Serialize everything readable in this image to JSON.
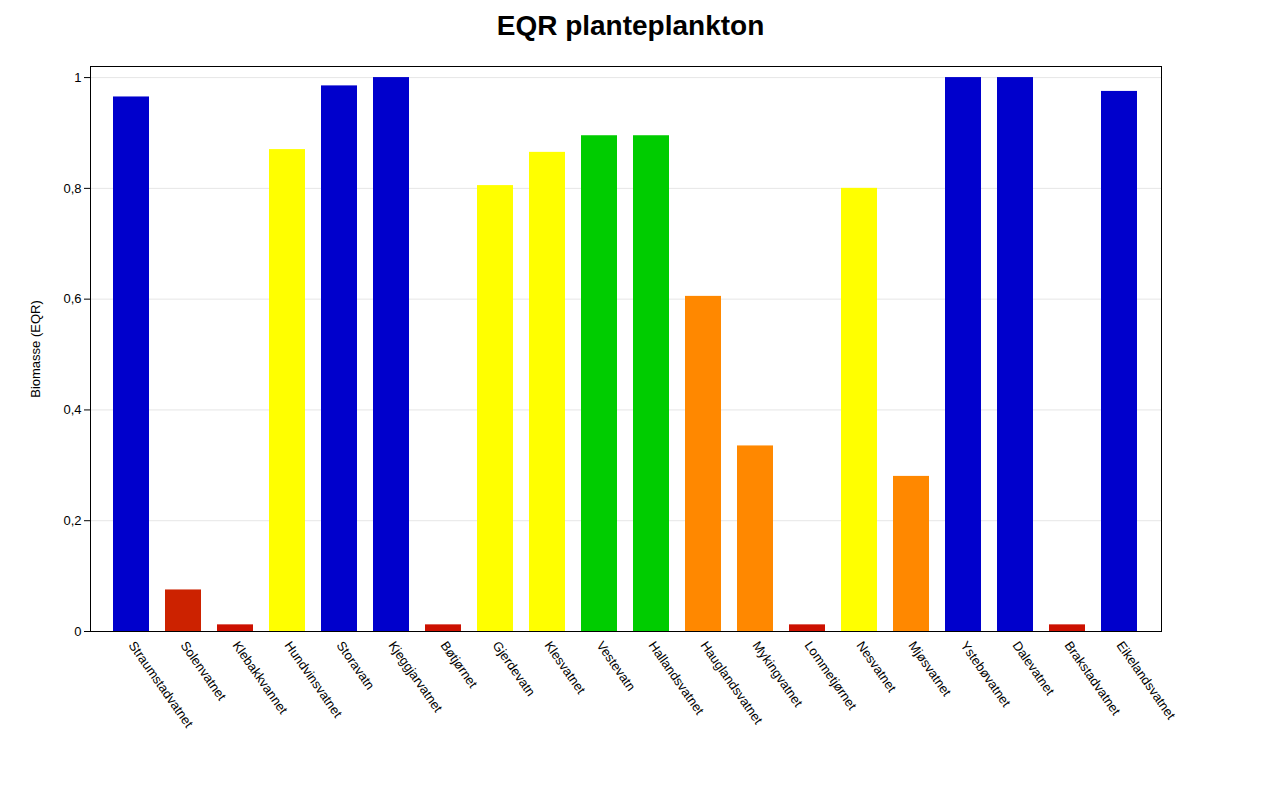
{
  "chart_data": {
    "type": "bar",
    "title": "EQR planteplankton",
    "ylabel": "Biomasse (EQR)",
    "categories": [
      "Straumstadvatnet",
      "Solenvatnet",
      "Klebakkvannet",
      "Hundvinsvatnet",
      "Storavatn",
      "Kjeggjarvatnet",
      "Bøtjørnet",
      "Gjerdevatn",
      "Klesvatnet",
      "Vestevatn",
      "Hallandsvatnet",
      "Hauglandsvatnet",
      "Mykingvatnet",
      "Lommetjørnet",
      "Nesvatnet",
      "Mjøsvatnet",
      "Ystebøvatnet",
      "Dalevatnet",
      "Brakstadvatnet",
      "Eikelandsvatnet"
    ],
    "values": [
      0.965,
      0.075,
      0.012,
      0.87,
      0.985,
      1.0,
      0.012,
      0.805,
      0.865,
      0.895,
      0.895,
      0.605,
      0.335,
      0.012,
      0.8,
      0.28,
      1.0,
      1.0,
      0.012,
      0.975
    ],
    "colors": [
      "#0000cc",
      "#cc2200",
      "#cc1100",
      "#ffff00",
      "#0000cc",
      "#0000cc",
      "#cc1100",
      "#ffff00",
      "#ffff00",
      "#00cc00",
      "#00cc00",
      "#ff8800",
      "#ff8800",
      "#cc1100",
      "#ffff00",
      "#ff8800",
      "#0000cc",
      "#0000cc",
      "#cc1100",
      "#0000cc"
    ],
    "ylim": [
      0,
      1.02
    ],
    "yticks": [
      0,
      {
        "value": 0.2,
        "label": "0,2"
      },
      {
        "value": 0.4,
        "label": "0,4"
      },
      {
        "value": 0.6,
        "label": "0,6"
      },
      {
        "value": 0.8,
        "label": "0,8"
      },
      1
    ],
    "grid": true
  }
}
